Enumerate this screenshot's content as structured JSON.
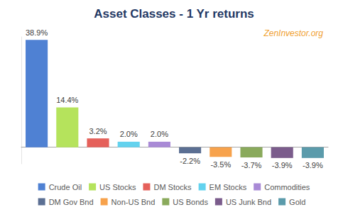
{
  "chart_data": {
    "type": "bar",
    "title": "Asset Classes - 1 Yr returns",
    "annotation": "ZenInvestor.org",
    "categories": [
      "Crude Oil",
      "US Stocks",
      "DM Stocks",
      "EM Stocks",
      "Commodities",
      "DM Gov Bnd",
      "Non-US Bnd",
      "US Bonds",
      "US Junk Bnd",
      "Gold"
    ],
    "values": [
      38.9,
      14.4,
      3.2,
      2.0,
      2.0,
      -2.2,
      -3.5,
      -3.7,
      -3.9,
      -3.9
    ],
    "value_labels": [
      "38.9%",
      "14.4%",
      "3.2%",
      "2.0%",
      "2.0%",
      "-2.2%",
      "-3.5%",
      "-3.7%",
      "-3.9%",
      "-3.9%"
    ],
    "colors": [
      "#4f81d3",
      "#b5e35c",
      "#e5605a",
      "#63d2ee",
      "#a98ad6",
      "#5b6f93",
      "#f7a24c",
      "#8aaa5c",
      "#7b5c8c",
      "#5b9bab"
    ],
    "ylim": [
      -6,
      40
    ],
    "data_labels": true,
    "tick_labels": false,
    "grid": false,
    "legend": "bottom"
  }
}
